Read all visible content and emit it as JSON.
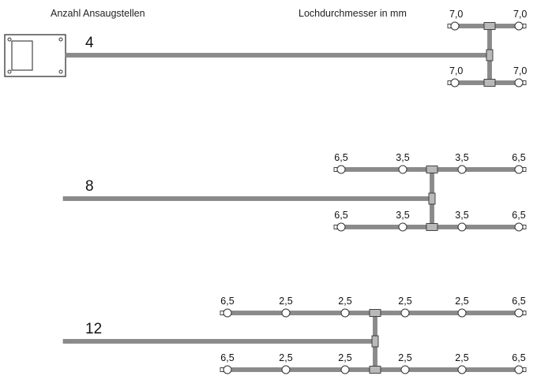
{
  "header": {
    "count_label": "Anzahl Ansaugstellen",
    "diameter_label": "Lochdurchmesser in mm"
  },
  "device": {
    "icon": "detector-unit-icon"
  },
  "colors": {
    "pipe": "#8a8a8a",
    "pipe_edge": "#6f6f6f",
    "fitting": "#b9b9b9",
    "outline": "#333333"
  },
  "configs": [
    {
      "count": "4",
      "upper_holes": [
        "7,0",
        "7,0"
      ],
      "lower_holes": [
        "7,0",
        "7,0"
      ]
    },
    {
      "count": "8",
      "upper_holes": [
        "6,5",
        "3,5",
        "3,5",
        "6,5"
      ],
      "lower_holes": [
        "6,5",
        "3,5",
        "3,5",
        "6,5"
      ]
    },
    {
      "count": "12",
      "upper_holes": [
        "6,5",
        "2,5",
        "2,5",
        "2,5",
        "2,5",
        "6,5"
      ],
      "lower_holes": [
        "6,5",
        "2,5",
        "2,5",
        "2,5",
        "2,5",
        "6,5"
      ]
    }
  ]
}
